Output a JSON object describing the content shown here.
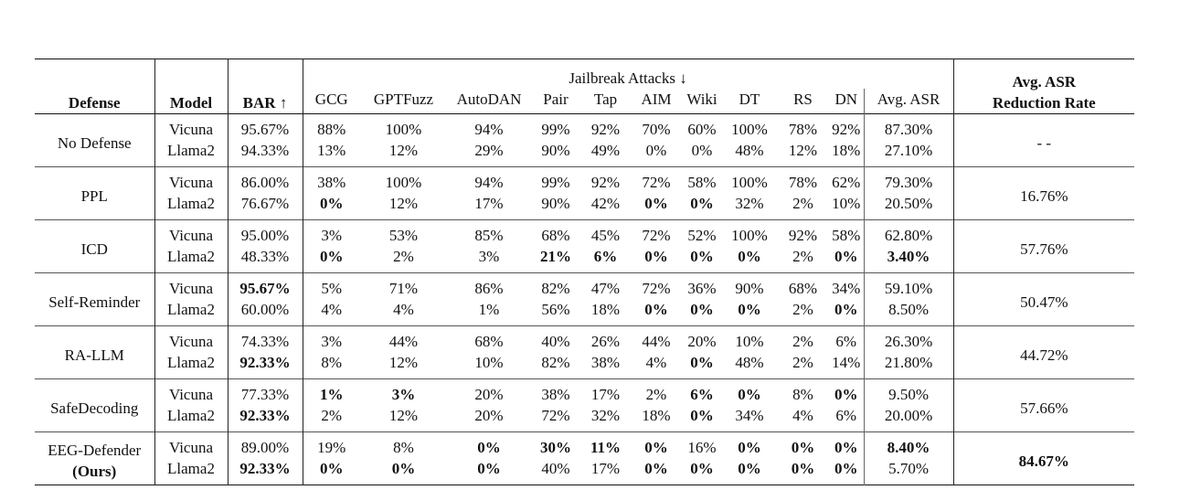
{
  "headers": {
    "defense": "Defense",
    "model": "Model",
    "bar": "BAR ↑",
    "attacks_group": "Jailbreak Attacks ↓",
    "attacks": [
      "GCG",
      "GPTFuzz",
      "AutoDAN",
      "Pair",
      "Tap",
      "AIM",
      "Wiki",
      "DT",
      "RS",
      "DN",
      "Avg. ASR"
    ],
    "reduction_line1": "Avg. ASR",
    "reduction_line2": "Reduction Rate"
  },
  "rows": [
    {
      "defense": "No Defense",
      "reduction": "- -",
      "models": [
        {
          "model": "Vicuna",
          "bar": "95.67%",
          "cells": [
            "88%",
            "100%",
            "94%",
            "99%",
            "92%",
            "70%",
            "60%",
            "100%",
            "78%",
            "92%",
            "87.30%"
          ]
        },
        {
          "model": "Llama2",
          "bar": "94.33%",
          "cells": [
            "13%",
            "12%",
            "29%",
            "90%",
            "49%",
            "0%",
            "0%",
            "48%",
            "12%",
            "18%",
            "27.10%"
          ]
        }
      ]
    },
    {
      "defense": "PPL",
      "reduction": "16.76%",
      "models": [
        {
          "model": "Vicuna",
          "bar": "86.00%",
          "cells": [
            "38%",
            "100%",
            "94%",
            "99%",
            "92%",
            "72%",
            "58%",
            "100%",
            "78%",
            "62%",
            "79.30%"
          ]
        },
        {
          "model": "Llama2",
          "bar": "76.67%",
          "cells": [
            "0%",
            "12%",
            "17%",
            "90%",
            "42%",
            "0%",
            "0%",
            "32%",
            "2%",
            "10%",
            "20.50%"
          ]
        }
      ]
    },
    {
      "defense": "ICD",
      "reduction": "57.76%",
      "models": [
        {
          "model": "Vicuna",
          "bar": "95.00%",
          "cells": [
            "3%",
            "53%",
            "85%",
            "68%",
            "45%",
            "72%",
            "52%",
            "100%",
            "92%",
            "58%",
            "62.80%"
          ]
        },
        {
          "model": "Llama2",
          "bar": "48.33%",
          "cells": [
            "0%",
            "2%",
            "3%",
            "21%",
            "6%",
            "0%",
            "0%",
            "0%",
            "2%",
            "0%",
            "3.40%"
          ]
        }
      ]
    },
    {
      "defense": "Self-Reminder",
      "reduction": "50.47%",
      "models": [
        {
          "model": "Vicuna",
          "bar": "95.67%",
          "cells": [
            "5%",
            "71%",
            "86%",
            "82%",
            "47%",
            "72%",
            "36%",
            "90%",
            "68%",
            "34%",
            "59.10%"
          ]
        },
        {
          "model": "Llama2",
          "bar": "60.00%",
          "cells": [
            "4%",
            "4%",
            "1%",
            "56%",
            "18%",
            "0%",
            "0%",
            "0%",
            "2%",
            "0%",
            "8.50%"
          ]
        }
      ]
    },
    {
      "defense": "RA-LLM",
      "reduction": "44.72%",
      "models": [
        {
          "model": "Vicuna",
          "bar": "74.33%",
          "cells": [
            "3%",
            "44%",
            "68%",
            "40%",
            "26%",
            "44%",
            "20%",
            "10%",
            "2%",
            "6%",
            "26.30%"
          ]
        },
        {
          "model": "Llama2",
          "bar": "92.33%",
          "cells": [
            "8%",
            "12%",
            "10%",
            "82%",
            "38%",
            "4%",
            "0%",
            "48%",
            "2%",
            "14%",
            "21.80%"
          ]
        }
      ]
    },
    {
      "defense": "SafeDecoding",
      "reduction": "57.66%",
      "models": [
        {
          "model": "Vicuna",
          "bar": "77.33%",
          "cells": [
            "1%",
            "3%",
            "20%",
            "38%",
            "17%",
            "2%",
            "6%",
            "0%",
            "8%",
            "0%",
            "9.50%"
          ]
        },
        {
          "model": "Llama2",
          "bar": "92.33%",
          "cells": [
            "2%",
            "12%",
            "20%",
            "72%",
            "32%",
            "18%",
            "0%",
            "34%",
            "4%",
            "6%",
            "20.00%"
          ]
        }
      ]
    },
    {
      "defense": "EEG-Defender",
      "defense_note": "(Ours)",
      "reduction": "84.67%",
      "models": [
        {
          "model": "Vicuna",
          "bar": "89.00%",
          "cells": [
            "19%",
            "8%",
            "0%",
            "30%",
            "11%",
            "0%",
            "16%",
            "0%",
            "0%",
            "0%",
            "8.40%"
          ]
        },
        {
          "model": "Llama2",
          "bar": "92.33%",
          "cells": [
            "0%",
            "0%",
            "0%",
            "40%",
            "17%",
            "0%",
            "0%",
            "0%",
            "0%",
            "0%",
            "5.70%"
          ]
        }
      ]
    }
  ]
}
